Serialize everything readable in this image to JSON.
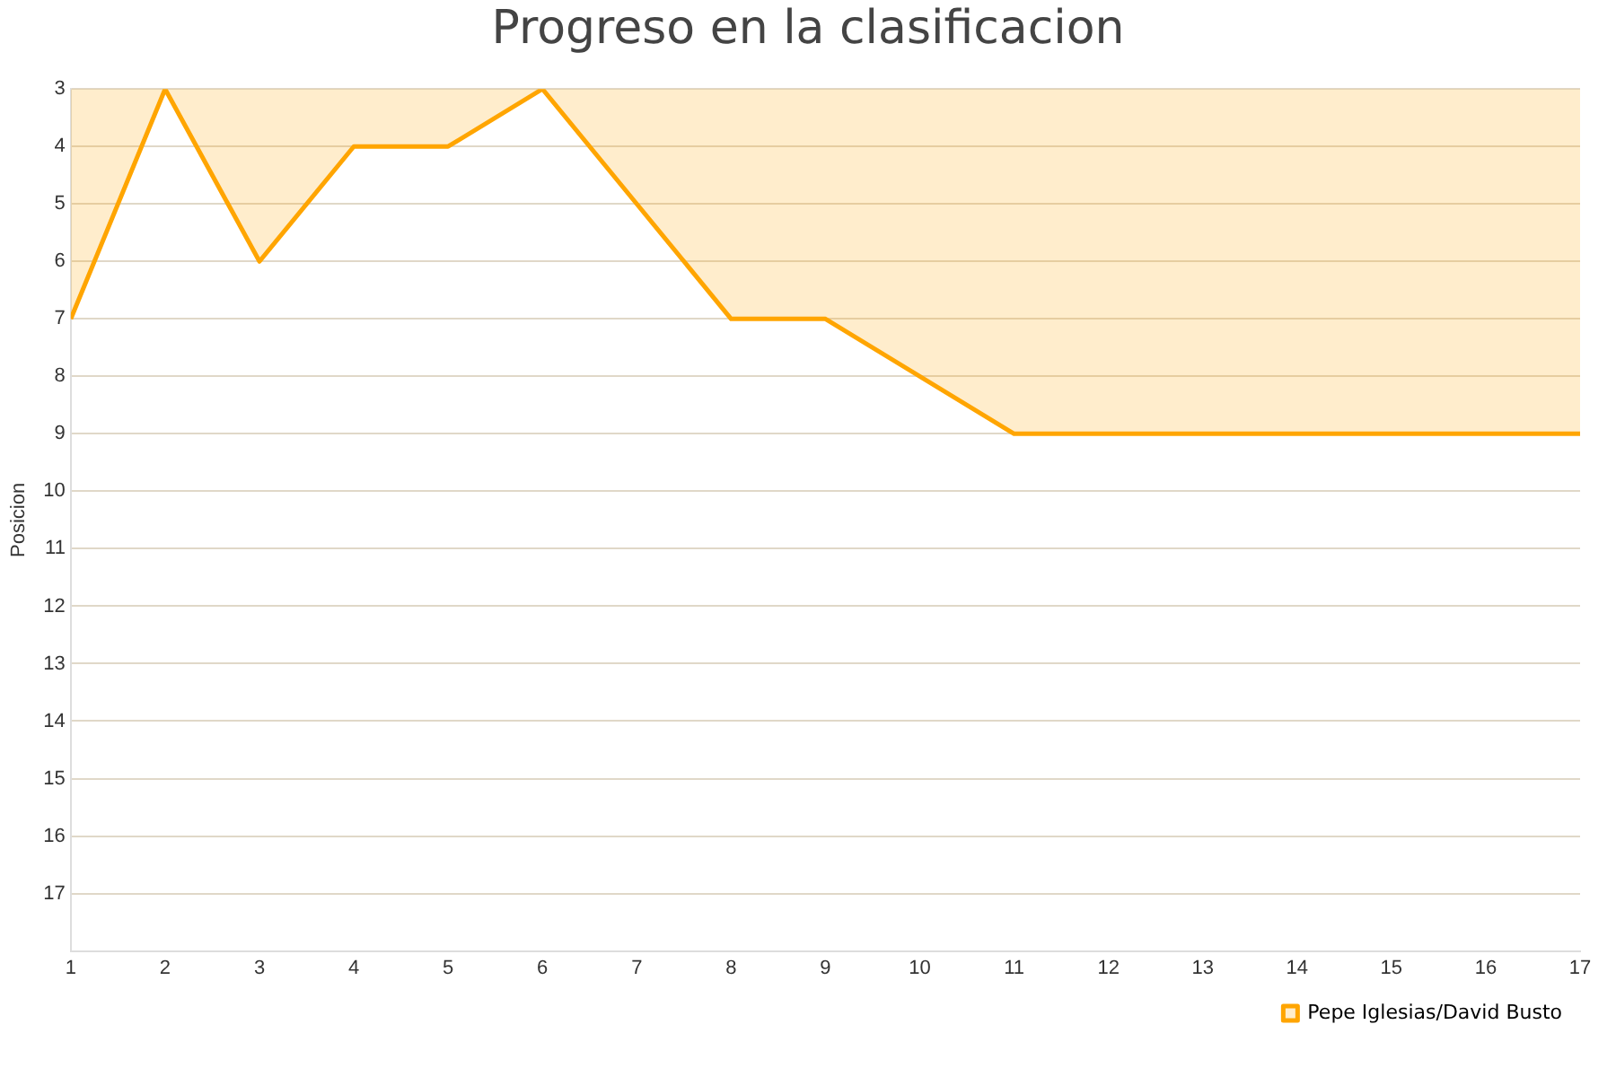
{
  "chart_data": {
    "type": "area",
    "title": "Progreso en la clasificacion",
    "ylabel": "Posicion",
    "x": [
      1,
      2,
      3,
      4,
      5,
      6,
      7,
      8,
      9,
      10,
      11,
      12,
      13,
      14,
      15,
      16,
      17
    ],
    "series": [
      {
        "name": "Pepe Iglesias/David Busto",
        "color": "#ffa500",
        "values": [
          7,
          3,
          6,
          4,
          4,
          3,
          5,
          7,
          7,
          8,
          9,
          9,
          9,
          9,
          9,
          9,
          9
        ]
      }
    ],
    "xlim": [
      1,
      17
    ],
    "xticks": [
      1,
      2,
      3,
      4,
      5,
      6,
      7,
      8,
      9,
      10,
      11,
      12,
      13,
      14,
      15,
      16,
      17
    ],
    "ylim": [
      18,
      3
    ],
    "yticks": [
      3,
      4,
      5,
      6,
      7,
      8,
      9,
      10,
      11,
      12,
      13,
      14,
      15,
      16,
      17
    ],
    "grid": "y",
    "legend": "bottom right",
    "marker": "none"
  }
}
